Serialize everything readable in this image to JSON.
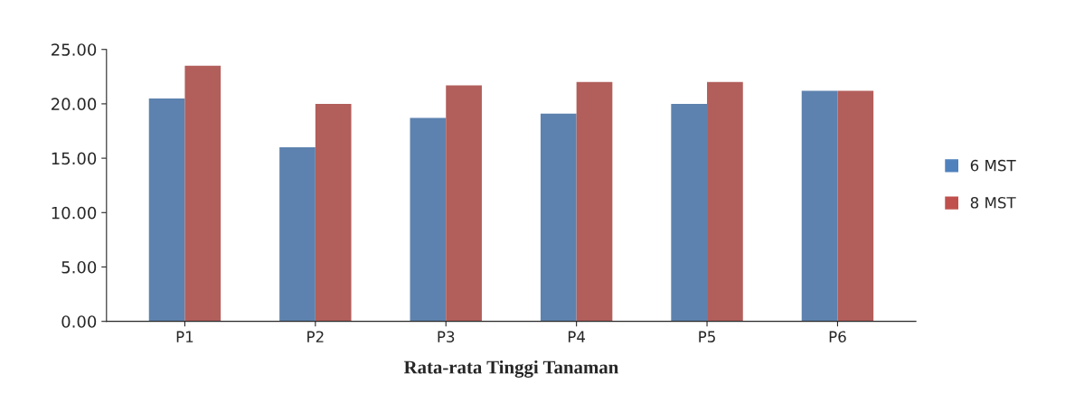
{
  "chart_data": {
    "type": "bar",
    "xlabel": "Rata-rata Tinggi Tanaman",
    "categories": [
      "P1",
      "P2",
      "P3",
      "P4",
      "P5",
      "P6"
    ],
    "series": [
      {
        "name": "6 MST",
        "color": "#4f81bd",
        "values": [
          20.5,
          16.0,
          18.7,
          19.1,
          20.0,
          21.2
        ]
      },
      {
        "name": "8 MST",
        "color": "#c0504d",
        "values": [
          23.5,
          20.0,
          21.7,
          22.0,
          22.0,
          21.2
        ]
      }
    ],
    "ylim": [
      0,
      25
    ],
    "yticks": [
      {
        "value": 0,
        "label": "0.00"
      },
      {
        "value": 5,
        "label": "5.00"
      },
      {
        "value": 10,
        "label": "10.00"
      },
      {
        "value": 15,
        "label": "15.00"
      },
      {
        "value": 20,
        "label": "20.00"
      },
      {
        "value": 25,
        "label": "25.00"
      }
    ],
    "grid": false,
    "legend": "right"
  }
}
